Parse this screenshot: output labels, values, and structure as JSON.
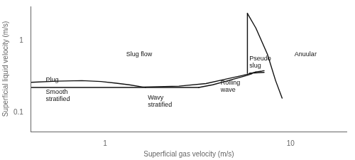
{
  "chart_data": {
    "type": "line",
    "log": true,
    "xlabel": "Superficial gas velocity (m/s)",
    "ylabel": "Superficial liquid velocity (m/s)",
    "xlim": [
      0.4,
      20
    ],
    "ylim": [
      0.055,
      3.0
    ],
    "xticks": [
      1,
      10
    ],
    "yticks": [
      0.1,
      1
    ],
    "grid": false,
    "color": "#111111",
    "series": [
      {
        "x": [
          0.4,
          0.55,
          0.75,
          0.95,
          1.15,
          1.35,
          1.6
        ],
        "values": [
          0.265,
          0.275,
          0.28,
          0.272,
          0.258,
          0.245,
          0.228
        ]
      },
      {
        "x": [
          0.4,
          1.65
        ],
        "values": [
          0.225,
          0.225
        ]
      },
      {
        "x": [
          1.65,
          2.5,
          3.2
        ],
        "values": [
          0.225,
          0.225,
          0.225
        ]
      },
      {
        "x": [
          3.2,
          3.8,
          4.5,
          5.2,
          5.8,
          6.2
        ],
        "values": [
          0.225,
          0.245,
          0.275,
          0.305,
          0.33,
          0.35
        ]
      },
      {
        "x": [
          1.6,
          2.5,
          3.5,
          4.5,
          5.5,
          6.0,
          6.5
        ],
        "values": [
          0.228,
          0.235,
          0.255,
          0.295,
          0.33,
          0.35,
          0.37
        ]
      },
      {
        "x": [
          6.0,
          7.2
        ],
        "values": [
          0.355,
          0.365
        ]
      },
      {
        "x": [
          5.85,
          5.85
        ],
        "values": [
          0.355,
          2.4
        ]
      },
      {
        "x": [
          5.85,
          6.5,
          7.5,
          8.3,
          9.0
        ],
        "values": [
          2.4,
          1.5,
          0.65,
          0.28,
          0.16
        ]
      },
      {
        "x": [
          6.5,
          7.0,
          7.2
        ],
        "values": [
          0.37,
          0.38,
          0.385
        ]
      }
    ],
    "annotations": [
      {
        "text": "Slug flow",
        "x": 1.3,
        "y": 0.65
      },
      {
        "text": "Plug",
        "x": 0.48,
        "y": 0.285
      },
      {
        "text": "Smooth\nstratified",
        "x": 0.48,
        "y": 0.175
      },
      {
        "text": "Wavy\nstratified",
        "x": 1.7,
        "y": 0.145
      },
      {
        "text": "Rolling\nwave",
        "x": 4.2,
        "y": 0.235
      },
      {
        "text": "Pseudo\nslug",
        "x": 6.0,
        "y": 0.5
      },
      {
        "text": "Anuular",
        "x": 10.5,
        "y": 0.65
      }
    ]
  }
}
